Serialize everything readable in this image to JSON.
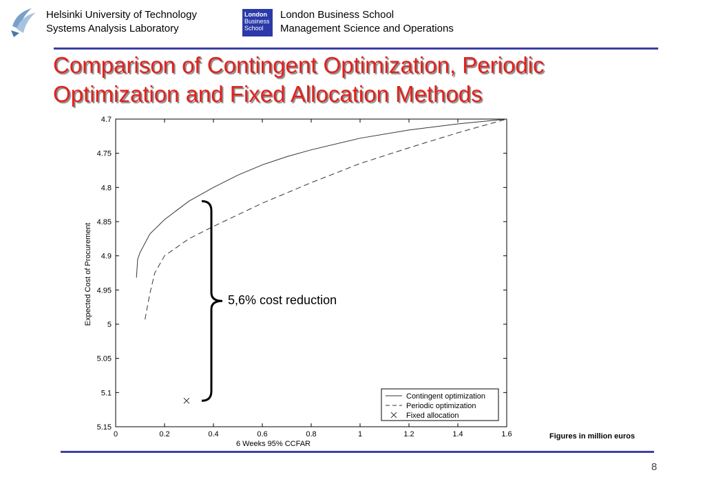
{
  "header": {
    "left_line1": "Helsinki University of Technology",
    "left_line2": "Systems Analysis Laboratory",
    "right_line1": "London Business School",
    "right_line2": "Management Science and Operations",
    "lbs_logo": {
      "line1": "London",
      "line2": "Business",
      "line3": "School"
    }
  },
  "title": {
    "line1": "Comparison of Contingent Optimization, Periodic",
    "line2": "Optimization and Fixed Allocation Methods"
  },
  "figures_note": "Figures in million euros",
  "page_number": "8",
  "annotation": "5,6% cost reduction",
  "colors": {
    "title": "#e0221e",
    "rule": "#3b3fa3",
    "lbs_blue": "#2b3aa8"
  },
  "chart_data": {
    "type": "line",
    "xlabel": "6 Weeks 95% CCFAR",
    "ylabel": "Expected Cost of Procurement",
    "xlim": [
      0,
      1.6
    ],
    "ylim": [
      4.7,
      5.15
    ],
    "y_reversed": true,
    "xticks": [
      "0",
      "0.2",
      "0.4",
      "0.6",
      "0.8",
      "1",
      "1.2",
      "1.4",
      "1.6"
    ],
    "yticks": [
      "4.7",
      "4.75",
      "4.8",
      "4.85",
      "4.9",
      "4.95",
      "5",
      "5.05",
      "5.1",
      "5.15"
    ],
    "legend_position": "bottom-right",
    "series": [
      {
        "name": "Contingent optimization",
        "style": "solid",
        "x": [
          0.085,
          0.09,
          0.1,
          0.14,
          0.2,
          0.3,
          0.4,
          0.5,
          0.6,
          0.7,
          0.8,
          1.0,
          1.2,
          1.4,
          1.6
        ],
        "y": [
          4.932,
          4.905,
          4.895,
          4.868,
          4.847,
          4.82,
          4.8,
          4.782,
          4.767,
          4.755,
          4.745,
          4.728,
          4.716,
          4.707,
          4.7
        ]
      },
      {
        "name": "Periodic optimization",
        "style": "dashed",
        "x": [
          0.12,
          0.14,
          0.16,
          0.2,
          0.3,
          0.4,
          0.5,
          0.6,
          0.7,
          0.8,
          1.0,
          1.2,
          1.4,
          1.6
        ],
        "y": [
          4.993,
          4.955,
          4.925,
          4.9,
          4.875,
          4.857,
          4.84,
          4.823,
          4.808,
          4.793,
          4.765,
          4.742,
          4.72,
          4.7
        ]
      },
      {
        "name": "Fixed allocation",
        "style": "marker-x",
        "x": [
          0.29
        ],
        "y": [
          5.112
        ]
      }
    ]
  }
}
